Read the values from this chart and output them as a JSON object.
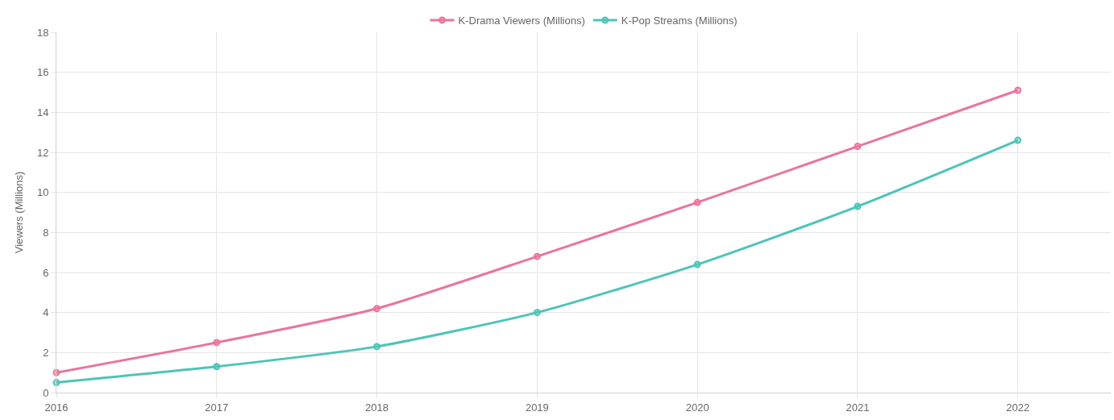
{
  "chart_data": {
    "type": "line",
    "ylabel": "Viewers (Millions)",
    "x": [
      2016,
      2017,
      2018,
      2019,
      2020,
      2021,
      2022
    ],
    "series": [
      {
        "name": "K-Drama Viewers (Millions)",
        "color": "#e8769a",
        "values": [
          1.0,
          2.5,
          4.2,
          6.8,
          9.5,
          12.3,
          15.1
        ]
      },
      {
        "name": "K-Pop Streams (Millions)",
        "color": "#4cc4b8",
        "values": [
          0.5,
          1.3,
          2.3,
          4.0,
          6.4,
          9.3,
          12.6
        ]
      }
    ],
    "xlim": [
      2016,
      2022.58
    ],
    "xticks": [
      2016,
      2017,
      2018,
      2019,
      2020,
      2021,
      2022
    ],
    "ylim": [
      0,
      18
    ],
    "yticks": [
      0,
      2,
      4,
      6,
      8,
      10,
      12,
      14,
      16,
      18
    ],
    "grid": true,
    "legend": "top",
    "marker": "circle",
    "line_style": "solid"
  }
}
